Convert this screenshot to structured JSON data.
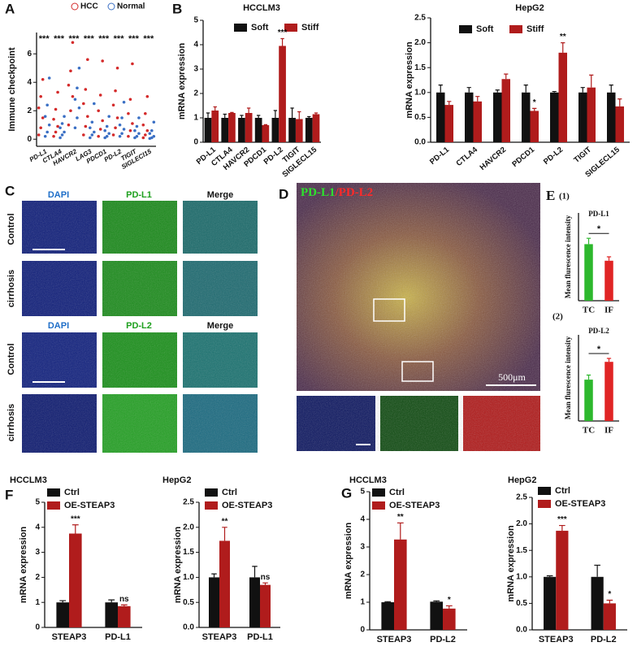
{
  "panel_letters": [
    "A",
    "B",
    "C",
    "D",
    "E",
    "F",
    "G"
  ],
  "panel_c": {
    "columns_top": [
      "DAPI",
      "PD-L1",
      "Merge"
    ],
    "columns_bottom": [
      "DAPI",
      "PD-L2",
      "Merge"
    ],
    "rows_top": [
      "Control",
      "cirrhosis"
    ],
    "rows_bottom": [
      "Control",
      "cirrhosis"
    ]
  },
  "panel_d": {
    "label_green": "PD-L1",
    "label_red": "/PD-L2",
    "scale": "500μm"
  },
  "panel_e": {
    "numbers": [
      "(1)",
      "(2)"
    ]
  },
  "chart_data": [
    {
      "type": "strip",
      "ylabel": "Immune checkpoint",
      "ylim": [
        -0.5,
        7.5
      ],
      "yticks": [
        0,
        2,
        4,
        6
      ],
      "categories": [
        "PD-L1",
        "CTLA4",
        "HAVCR2",
        "LAG3",
        "PDCD1",
        "PD-L2",
        "TIGIT",
        "SIGLECl15"
      ],
      "series": [
        {
          "name": "HCC",
          "color": "#d42a2a",
          "values": [
            [
              0.3,
              0.8,
              1.5,
              2.2,
              3.0,
              4.2
            ],
            [
              0.2,
              0.5,
              0.9,
              1.4,
              2.1,
              3.3
            ],
            [
              1.0,
              2.0,
              3.0,
              3.8,
              4.8,
              6.8
            ],
            [
              0.3,
              0.9,
              1.6,
              2.5,
              3.5,
              5.6
            ],
            [
              0.2,
              0.7,
              1.3,
              2.0,
              3.1,
              5.5
            ],
            [
              0.3,
              0.8,
              1.5,
              2.4,
              3.4,
              5.0
            ],
            [
              0.2,
              0.6,
              1.1,
              1.8,
              2.8,
              5.3
            ],
            [
              0.1,
              0.3,
              0.6,
              1.0,
              1.8,
              3.0
            ]
          ]
        },
        {
          "name": "Normal",
          "color": "#3a6fc4",
          "values": [
            [
              0.2,
              0.5,
              1.0,
              1.6,
              2.4,
              4.3
            ],
            [
              0.1,
              0.3,
              0.5,
              0.8,
              1.1,
              1.6
            ],
            [
              0.8,
              1.5,
              2.2,
              2.8,
              3.6,
              5.0
            ],
            [
              0.1,
              0.3,
              0.5,
              0.8,
              1.2,
              2.5
            ],
            [
              0.1,
              0.2,
              0.4,
              0.6,
              0.9,
              1.6
            ],
            [
              0.2,
              0.4,
              0.7,
              1.0,
              1.5,
              2.6
            ],
            [
              0.1,
              0.2,
              0.4,
              0.6,
              0.9,
              1.5
            ],
            [
              0.05,
              0.1,
              0.2,
              0.4,
              0.6,
              1.2
            ]
          ]
        }
      ],
      "annotations": [
        {
          "text": "***",
          "category": "PD-L1"
        },
        {
          "text": "***",
          "category": "CTLA4"
        },
        {
          "text": "***",
          "category": "HAVCR2"
        },
        {
          "text": "***",
          "category": "LAG3"
        },
        {
          "text": "***",
          "category": "PDCD1"
        },
        {
          "text": "***",
          "category": "PD-L2"
        },
        {
          "text": "***",
          "category": "TIGIT"
        },
        {
          "text": "***",
          "category": "SIGLECl15"
        }
      ]
    },
    {
      "type": "bar",
      "title": "HCCLM3",
      "ylabel": "mRNA expression",
      "ylim": [
        0,
        5
      ],
      "yticks": [
        0,
        1,
        2,
        3,
        4,
        5
      ],
      "categories": [
        "PD-L1",
        "CTLA4",
        "HAVCR2",
        "PDCD1",
        "PD-L2",
        "TIGIT",
        "SIGLECL15"
      ],
      "series": [
        {
          "name": "Soft",
          "color": "#111111",
          "values": [
            1.0,
            1.0,
            1.0,
            1.0,
            1.0,
            1.0,
            1.0
          ],
          "errors": [
            0.2,
            0.15,
            0.1,
            0.1,
            0.3,
            0.4,
            0.05
          ]
        },
        {
          "name": "Stiff",
          "color": "#b01c1c",
          "values": [
            1.3,
            1.2,
            1.2,
            0.7,
            3.95,
            0.95,
            1.15
          ],
          "errors": [
            0.15,
            0.02,
            0.2,
            0.02,
            0.3,
            0.3,
            0.05
          ]
        }
      ],
      "annotations": [
        {
          "text": "***",
          "category": "PD-L2",
          "series": "Stiff"
        }
      ]
    },
    {
      "type": "bar",
      "title": "HepG2",
      "ylabel": "mRNA expression",
      "ylim": [
        0,
        2.5
      ],
      "yticks": [
        {
          "value": 0,
          "label": "0.0"
        },
        {
          "value": 0.5,
          "label": "0.5"
        },
        {
          "value": 1,
          "label": "1.0"
        },
        {
          "value": 1.5,
          "label": "1.5"
        },
        {
          "value": 2,
          "label": "2.0"
        },
        {
          "value": 2.5,
          "label": "2.5"
        }
      ],
      "categories": [
        "PD-L1",
        "CTLA4",
        "HAVCR2",
        "PDCD1",
        "PD-L2",
        "TIGIT",
        "SIGLECL15"
      ],
      "series": [
        {
          "name": "Soft",
          "color": "#111111",
          "values": [
            1.0,
            1.0,
            1.0,
            1.0,
            1.0,
            1.0,
            1.0
          ],
          "errors": [
            0.15,
            0.1,
            0.05,
            0.15,
            0.02,
            0.1,
            0.15
          ]
        },
        {
          "name": "Stiff",
          "color": "#b01c1c",
          "values": [
            0.75,
            0.82,
            1.27,
            0.63,
            1.8,
            1.1,
            0.72
          ],
          "errors": [
            0.07,
            0.1,
            0.1,
            0.05,
            0.2,
            0.25,
            0.15
          ]
        }
      ],
      "annotations": [
        {
          "text": "*",
          "category": "PDCD1",
          "series": "Stiff"
        },
        {
          "text": "**",
          "category": "PD-L2",
          "series": "Stiff"
        }
      ]
    },
    {
      "type": "bar",
      "title": "PD-L1",
      "ylabel": "Mean flurescence intensity",
      "ylim": [
        0,
        90
      ],
      "categories": [
        "TC",
        "IF"
      ],
      "series": [
        {
          "colors": [
            "#2db82d",
            "#e02424"
          ],
          "values": [
            58,
            41
          ],
          "errors": [
            6,
            4
          ]
        }
      ],
      "annotations": [
        {
          "text": "*"
        }
      ]
    },
    {
      "type": "bar",
      "title": "PD-L2",
      "ylabel": "Mean flurescence intensity",
      "ylim": [
        0,
        150
      ],
      "categories": [
        "TC",
        "IF"
      ],
      "series": [
        {
          "colors": [
            "#2db82d",
            "#e02424"
          ],
          "values": [
            72,
            103
          ],
          "errors": [
            8,
            6
          ]
        }
      ],
      "annotations": [
        {
          "text": "*"
        }
      ]
    },
    {
      "type": "bar",
      "title": "HCCLM3",
      "ylabel": "mRNA expression",
      "ylim": [
        0,
        5
      ],
      "yticks": [
        0,
        1,
        2,
        3,
        4,
        5
      ],
      "categories": [
        "STEAP3",
        "PD-L1"
      ],
      "series": [
        {
          "name": "Ctrl",
          "color": "#111111",
          "values": [
            1.0,
            1.0
          ],
          "errors": [
            0.07,
            0.1
          ]
        },
        {
          "name": "OE-STEAP3",
          "color": "#b01c1c",
          "values": [
            3.75,
            0.85
          ],
          "errors": [
            0.35,
            0.05
          ]
        }
      ],
      "annotations": [
        {
          "text": "***",
          "category": "STEAP3",
          "series": "OE-STEAP3"
        },
        {
          "text": "ns",
          "category": "PD-L1",
          "series": "OE-STEAP3"
        }
      ]
    },
    {
      "type": "bar",
      "title": "HepG2",
      "ylabel": "mRNA expression",
      "ylim": [
        0,
        2.5
      ],
      "yticks": [
        {
          "value": 0,
          "label": "0.0"
        },
        {
          "value": 0.5,
          "label": "0.5"
        },
        {
          "value": 1,
          "label": "1.0"
        },
        {
          "value": 1.5,
          "label": "1.5"
        },
        {
          "value": 2,
          "label": "2.0"
        },
        {
          "value": 2.5,
          "label": "2.5"
        }
      ],
      "categories": [
        "STEAP3",
        "PD-L1"
      ],
      "series": [
        {
          "name": "Ctrl",
          "color": "#111111",
          "values": [
            1.0,
            1.0
          ],
          "errors": [
            0.07,
            0.22
          ]
        },
        {
          "name": "OE-STEAP3",
          "color": "#b01c1c",
          "values": [
            1.73,
            0.85
          ],
          "errors": [
            0.27,
            0.04
          ]
        }
      ],
      "annotations": [
        {
          "text": "**",
          "category": "STEAP3",
          "series": "OE-STEAP3"
        },
        {
          "text": "ns",
          "category": "PD-L1",
          "series": "OE-STEAP3"
        }
      ]
    },
    {
      "type": "bar",
      "title": "HCCLM3",
      "ylabel": "mRNA expression",
      "ylim": [
        0,
        5
      ],
      "yticks": [
        0,
        1,
        2,
        3,
        4,
        5
      ],
      "categories": [
        "STEAP3",
        "PD-L2"
      ],
      "series": [
        {
          "name": "Ctrl",
          "color": "#111111",
          "values": [
            1.0,
            1.02
          ],
          "errors": [
            0.02,
            0.03
          ]
        },
        {
          "name": "OE-STEAP3",
          "color": "#b01c1c",
          "values": [
            3.27,
            0.77
          ],
          "errors": [
            0.6,
            0.1
          ]
        }
      ],
      "annotations": [
        {
          "text": "**",
          "category": "STEAP3",
          "series": "OE-STEAP3"
        },
        {
          "text": "*",
          "category": "PD-L2",
          "series": "OE-STEAP3"
        }
      ]
    },
    {
      "type": "bar",
      "title": "HepG2",
      "ylabel": "mRNA expression",
      "ylim": [
        0,
        2.5
      ],
      "yticks": [
        {
          "value": 0,
          "label": "0.0"
        },
        {
          "value": 0.5,
          "label": "0.5"
        },
        {
          "value": 1,
          "label": "1.0"
        },
        {
          "value": 1.5,
          "label": "1.5"
        },
        {
          "value": 2,
          "label": "2.0"
        },
        {
          "value": 2.5,
          "label": "2.5"
        }
      ],
      "categories": [
        "STEAP3",
        "PD-L2"
      ],
      "series": [
        {
          "name": "Ctrl",
          "color": "#111111",
          "values": [
            1.0,
            1.0
          ],
          "errors": [
            0.02,
            0.22
          ]
        },
        {
          "name": "OE-STEAP3",
          "color": "#b01c1c",
          "values": [
            1.87,
            0.5
          ],
          "errors": [
            0.1,
            0.06
          ]
        }
      ],
      "annotations": [
        {
          "text": "***",
          "category": "STEAP3",
          "series": "OE-STEAP3"
        },
        {
          "text": "*",
          "category": "PD-L2",
          "series": "OE-STEAP3"
        }
      ]
    }
  ]
}
